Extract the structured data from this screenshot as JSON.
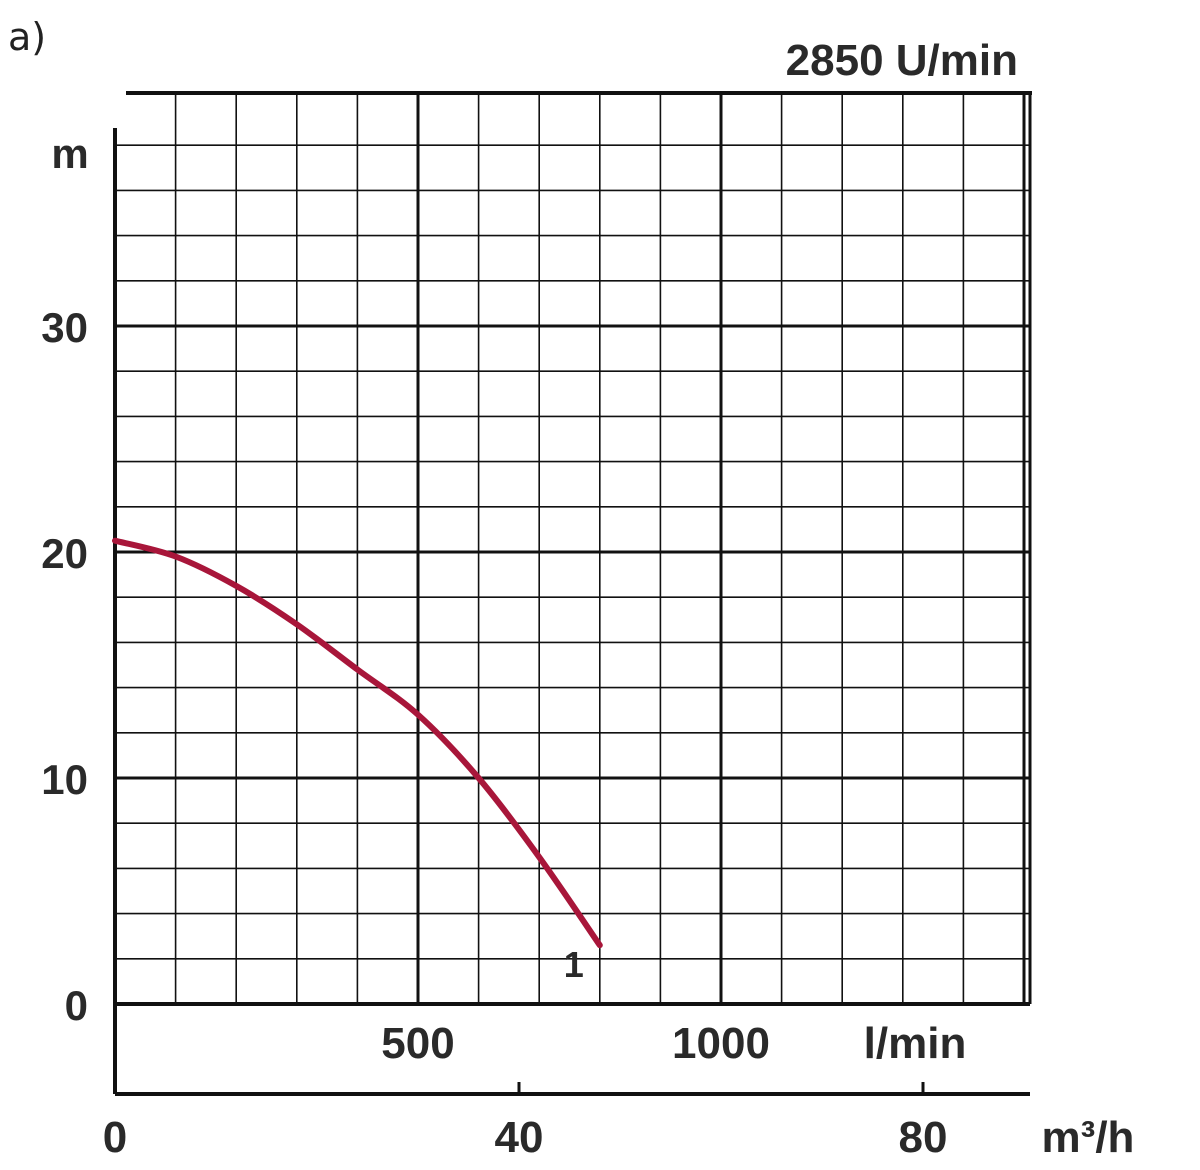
{
  "panel_label": "a)",
  "chart_data": {
    "type": "line",
    "title": "2850 U/min",
    "ylabel": "m",
    "xlabel_primary": "l/min",
    "xlabel_secondary": "m³/h",
    "xlim_lmin": [
      0,
      1500
    ],
    "ylim_m": [
      0,
      38
    ],
    "y_ticks": [
      {
        "value": 0,
        "label": "0"
      },
      {
        "value": 10,
        "label": "10"
      },
      {
        "value": 20,
        "label": "20"
      },
      {
        "value": 30,
        "label": "30"
      }
    ],
    "x_ticks_lmin": [
      {
        "value": 500,
        "label": "500"
      },
      {
        "value": 1000,
        "label": "1000"
      }
    ],
    "x_ticks_m3h": [
      {
        "value": 0,
        "label": "0"
      },
      {
        "value": 40,
        "label": "40"
      },
      {
        "value": 80,
        "label": "80"
      }
    ],
    "grid": true,
    "series": [
      {
        "name": "1",
        "color": "#a8163a",
        "x_lmin": [
          0,
          100,
          200,
          300,
          400,
          500,
          600,
          700,
          800
        ],
        "y_m": [
          20.5,
          19.8,
          18.5,
          16.8,
          14.8,
          12.8,
          10.0,
          6.5,
          2.6
        ]
      }
    ]
  }
}
